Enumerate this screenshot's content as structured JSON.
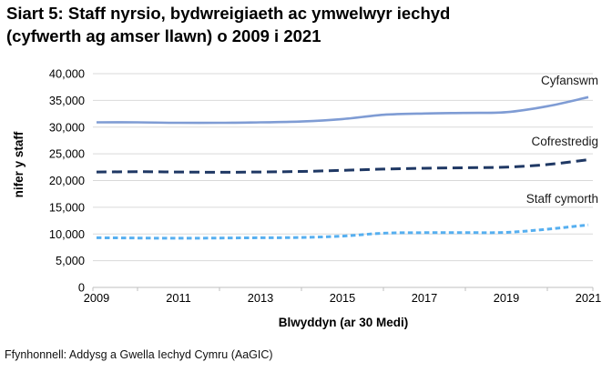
{
  "title_lines": [
    "Siart 5: Staff nyrsio, bydwreigiaeth ac ymwelwyr iechyd",
    "(cyfwerth ag amser llawn) o 2009 i 2021"
  ],
  "source": "Ffynhonnell: Addysg a Gwella Iechyd Cymru (AaGIC)",
  "chart_data": {
    "type": "line",
    "title": "Siart 5: Staff nyrsio, bydwreigiaeth ac ymwelwyr iechyd (cyfwerth ag amser llawn) o 2009 i 2021",
    "xlabel": "Blwyddyn (ar 30 Medi)",
    "ylabel": "nifer y staff",
    "x": [
      2009,
      2010,
      2011,
      2012,
      2013,
      2014,
      2015,
      2016,
      2017,
      2018,
      2019,
      2020,
      2021
    ],
    "x_tick_labels": [
      "2009",
      "2011",
      "2013",
      "2015",
      "2017",
      "2019",
      "2021"
    ],
    "ylim": [
      0,
      40000
    ],
    "ytick_step": 5000,
    "grid": "horizontal",
    "legend_position": "right-end-of-line",
    "colors": {
      "grid": "#d9d9d9",
      "axis": "#bfbfbf",
      "text": "#000000"
    },
    "series": [
      {
        "name": "Cyfanswm",
        "style": "solid",
        "color": "#7f9cd4",
        "width": 2.6,
        "values": [
          30900,
          30900,
          30800,
          30800,
          30900,
          31050,
          31500,
          32300,
          32550,
          32650,
          32800,
          33900,
          35600
        ]
      },
      {
        "name": "Cofrestredig",
        "style": "long-dash",
        "color": "#1f3864",
        "width": 3,
        "values": [
          21600,
          21650,
          21600,
          21550,
          21600,
          21700,
          21900,
          22150,
          22300,
          22400,
          22500,
          23000,
          23900
        ]
      },
      {
        "name": "Staff cymorth",
        "style": "short-dash",
        "color": "#56aff0",
        "width": 3,
        "values": [
          9300,
          9250,
          9200,
          9250,
          9300,
          9350,
          9600,
          10150,
          10250,
          10250,
          10300,
          10900,
          11700
        ]
      }
    ]
  }
}
